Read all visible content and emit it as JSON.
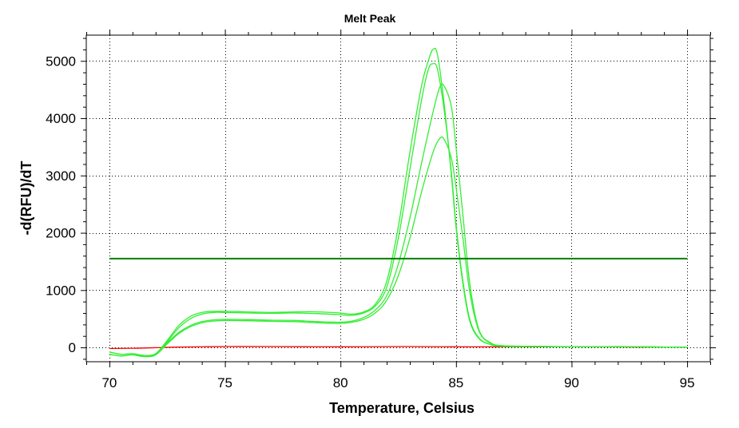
{
  "chart_data": {
    "type": "line",
    "title": "Melt Peak",
    "xlabel": "Temperature, Celsius",
    "ylabel": "-d(RFU)/dT",
    "xlim": [
      69,
      96
    ],
    "ylim": [
      -250,
      5450
    ],
    "xticks": [
      70,
      75,
      80,
      85,
      90,
      95
    ],
    "yticks": [
      0,
      1000,
      2000,
      3000,
      4000,
      5000
    ],
    "grid": true,
    "threshold": {
      "value": 1550,
      "x_range": [
        70,
        95
      ],
      "color": "#008000"
    },
    "series": [
      {
        "color": "#33ee33",
        "x": [
          70,
          70.5,
          71,
          71.5,
          72,
          72.5,
          73,
          73.5,
          74,
          74.5,
          75,
          76,
          77,
          78,
          79,
          80,
          80.5,
          81,
          81.5,
          82,
          82.5,
          83,
          83.5,
          83.8,
          84,
          84.2,
          84.5,
          84.8,
          85,
          85.3,
          85.6,
          86,
          86.5,
          87,
          88,
          89,
          90,
          91,
          92,
          93,
          94,
          95
        ],
        "y": [
          -80,
          -120,
          -110,
          -140,
          -110,
          120,
          380,
          540,
          610,
          630,
          630,
          620,
          610,
          620,
          620,
          600,
          580,
          620,
          750,
          1150,
          2100,
          3400,
          4550,
          5000,
          5200,
          5100,
          4200,
          3000,
          2100,
          1100,
          450,
          150,
          50,
          20,
          15,
          15,
          10,
          10,
          15,
          10,
          5,
          5
        ]
      },
      {
        "color": "#33ee33",
        "x": [
          70,
          70.5,
          71,
          71.5,
          72,
          72.5,
          73,
          73.5,
          74,
          74.5,
          75,
          76,
          77,
          78,
          79,
          80,
          80.5,
          81,
          81.5,
          82,
          82.5,
          83,
          83.5,
          83.8,
          84,
          84.2,
          84.5,
          84.8,
          85,
          85.3,
          85.6,
          86,
          86.5,
          87,
          88,
          89,
          90,
          91,
          92,
          93,
          94,
          95
        ],
        "y": [
          -80,
          -120,
          -110,
          -140,
          -110,
          100,
          340,
          500,
          580,
          610,
          610,
          600,
          595,
          600,
          590,
          570,
          560,
          600,
          720,
          1050,
          1900,
          3100,
          4300,
          4850,
          4950,
          4850,
          4100,
          3050,
          2150,
          1150,
          480,
          160,
          50,
          20,
          15,
          15,
          10,
          10,
          15,
          10,
          5,
          5
        ]
      },
      {
        "color": "#33ee33",
        "x": [
          70,
          70.5,
          71,
          71.5,
          72,
          72.5,
          73,
          73.5,
          74,
          74.5,
          75,
          76,
          77,
          78,
          79,
          80,
          80.5,
          81,
          81.5,
          82,
          82.5,
          83,
          83.5,
          84,
          84.3,
          84.5,
          84.8,
          85,
          85.3,
          85.6,
          86,
          86.5,
          87,
          88,
          89,
          90,
          91,
          92,
          93,
          94,
          95
        ],
        "y": [
          -120,
          -150,
          -130,
          -160,
          -130,
          80,
          260,
          380,
          450,
          480,
          490,
          485,
          475,
          470,
          450,
          440,
          460,
          520,
          650,
          900,
          1450,
          2250,
          3200,
          4100,
          4550,
          4550,
          4200,
          3500,
          2300,
          1100,
          300,
          80,
          30,
          20,
          15,
          12,
          10,
          12,
          10,
          5,
          5
        ]
      },
      {
        "color": "#33ee33",
        "x": [
          70,
          70.5,
          71,
          71.5,
          72,
          72.5,
          73,
          73.5,
          74,
          74.5,
          75,
          76,
          77,
          78,
          79,
          80,
          80.5,
          81,
          81.5,
          82,
          82.5,
          83,
          83.5,
          84,
          84.3,
          84.5,
          84.8,
          85,
          85.3,
          85.6,
          86,
          86.5,
          87,
          88,
          89,
          90,
          91,
          92,
          93,
          94,
          95
        ],
        "y": [
          -120,
          -150,
          -130,
          -160,
          -130,
          60,
          240,
          360,
          430,
          460,
          470,
          465,
          455,
          450,
          430,
          420,
          440,
          490,
          600,
          820,
          1250,
          1900,
          2700,
          3400,
          3650,
          3620,
          3300,
          2800,
          1900,
          950,
          280,
          70,
          30,
          20,
          15,
          12,
          10,
          12,
          10,
          5,
          5
        ]
      },
      {
        "color": "#ff0000",
        "x": [
          70,
          71,
          72,
          73,
          75,
          77,
          80,
          83,
          85,
          87,
          90,
          93,
          95
        ],
        "y": [
          -20,
          -15,
          -5,
          5,
          15,
          15,
          10,
          15,
          10,
          10,
          10,
          5,
          5
        ]
      }
    ]
  }
}
